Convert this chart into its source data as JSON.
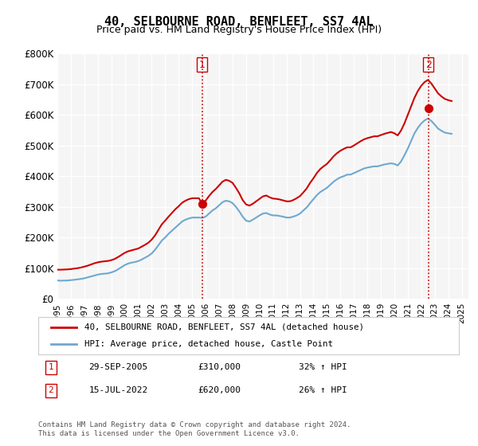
{
  "title": "40, SELBOURNE ROAD, BENFLEET, SS7 4AL",
  "subtitle": "Price paid vs. HM Land Registry's House Price Index (HPI)",
  "ylabel": "",
  "ylim": [
    0,
    800000
  ],
  "yticks": [
    0,
    100000,
    200000,
    300000,
    400000,
    500000,
    600000,
    700000,
    800000
  ],
  "ytick_labels": [
    "£0",
    "£100K",
    "£200K",
    "£300K",
    "£400K",
    "£500K",
    "£600K",
    "£700K",
    "£800K"
  ],
  "background_color": "#ffffff",
  "plot_background": "#f5f5f5",
  "grid_color": "#ffffff",
  "sale1_date": 2005.75,
  "sale1_price": 310000,
  "sale1_label": "1",
  "sale2_date": 2022.54,
  "sale2_price": 620000,
  "sale2_label": "2",
  "hpi_line_color": "#6fa8d0",
  "price_line_color": "#cc0000",
  "vline_color": "#cc0000",
  "vline_style": ":",
  "legend_label1": "40, SELBOURNE ROAD, BENFLEET, SS7 4AL (detached house)",
  "legend_label2": "HPI: Average price, detached house, Castle Point",
  "annotation1": "1     29-SEP-2005          £310,000          32% ↑ HPI",
  "annotation2": "2     15-JUL-2022            £620,000          26% ↑ HPI",
  "footer": "Contains HM Land Registry data © Crown copyright and database right 2024.\nThis data is licensed under the Open Government Licence v3.0.",
  "hpi_data": {
    "years": [
      1995.0,
      1995.25,
      1995.5,
      1995.75,
      1996.0,
      1996.25,
      1996.5,
      1996.75,
      1997.0,
      1997.25,
      1997.5,
      1997.75,
      1998.0,
      1998.25,
      1998.5,
      1998.75,
      1999.0,
      1999.25,
      1999.5,
      1999.75,
      2000.0,
      2000.25,
      2000.5,
      2000.75,
      2001.0,
      2001.25,
      2001.5,
      2001.75,
      2002.0,
      2002.25,
      2002.5,
      2002.75,
      2003.0,
      2003.25,
      2003.5,
      2003.75,
      2004.0,
      2004.25,
      2004.5,
      2004.75,
      2005.0,
      2005.25,
      2005.5,
      2005.75,
      2006.0,
      2006.25,
      2006.5,
      2006.75,
      2007.0,
      2007.25,
      2007.5,
      2007.75,
      2008.0,
      2008.25,
      2008.5,
      2008.75,
      2009.0,
      2009.25,
      2009.5,
      2009.75,
      2010.0,
      2010.25,
      2010.5,
      2010.75,
      2011.0,
      2011.25,
      2011.5,
      2011.75,
      2012.0,
      2012.25,
      2012.5,
      2012.75,
      2013.0,
      2013.25,
      2013.5,
      2013.75,
      2014.0,
      2014.25,
      2014.5,
      2014.75,
      2015.0,
      2015.25,
      2015.5,
      2015.75,
      2016.0,
      2016.25,
      2016.5,
      2016.75,
      2017.0,
      2017.25,
      2017.5,
      2017.75,
      2018.0,
      2018.25,
      2018.5,
      2018.75,
      2019.0,
      2019.25,
      2019.5,
      2019.75,
      2020.0,
      2020.25,
      2020.5,
      2020.75,
      2021.0,
      2021.25,
      2021.5,
      2021.75,
      2022.0,
      2022.25,
      2022.5,
      2022.75,
      2023.0,
      2023.25,
      2023.5,
      2023.75,
      2024.0,
      2024.25
    ],
    "values": [
      60000,
      59000,
      59500,
      60000,
      61000,
      62000,
      63500,
      65000,
      67000,
      70000,
      73000,
      76000,
      79000,
      81000,
      82000,
      83000,
      86000,
      90000,
      96000,
      103000,
      110000,
      115000,
      118000,
      120000,
      123000,
      128000,
      134000,
      140000,
      148000,
      160000,
      175000,
      190000,
      200000,
      212000,
      222000,
      232000,
      242000,
      252000,
      258000,
      262000,
      265000,
      265000,
      265000,
      264000,
      268000,
      278000,
      288000,
      295000,
      305000,
      315000,
      320000,
      318000,
      312000,
      300000,
      285000,
      268000,
      255000,
      252000,
      258000,
      265000,
      272000,
      278000,
      280000,
      275000,
      272000,
      272000,
      270000,
      268000,
      265000,
      265000,
      268000,
      272000,
      278000,
      288000,
      298000,
      312000,
      325000,
      338000,
      348000,
      355000,
      362000,
      372000,
      382000,
      390000,
      396000,
      400000,
      405000,
      405000,
      410000,
      415000,
      420000,
      425000,
      428000,
      430000,
      432000,
      432000,
      435000,
      438000,
      440000,
      442000,
      440000,
      435000,
      448000,
      468000,
      490000,
      515000,
      540000,
      558000,
      572000,
      582000,
      588000,
      580000,
      568000,
      555000,
      548000,
      542000,
      540000,
      538000
    ]
  },
  "price_data": {
    "years": [
      1995.0,
      1995.25,
      1995.5,
      1995.75,
      1996.0,
      1996.25,
      1996.5,
      1996.75,
      1997.0,
      1997.25,
      1997.5,
      1997.75,
      1998.0,
      1998.25,
      1998.5,
      1998.75,
      1999.0,
      1999.25,
      1999.5,
      1999.75,
      2000.0,
      2000.25,
      2000.5,
      2000.75,
      2001.0,
      2001.25,
      2001.5,
      2001.75,
      2002.0,
      2002.25,
      2002.5,
      2002.75,
      2003.0,
      2003.25,
      2003.5,
      2003.75,
      2004.0,
      2004.25,
      2004.5,
      2004.75,
      2005.0,
      2005.25,
      2005.5,
      2005.75,
      2006.0,
      2006.25,
      2006.5,
      2006.75,
      2007.0,
      2007.25,
      2007.5,
      2007.75,
      2008.0,
      2008.25,
      2008.5,
      2008.75,
      2009.0,
      2009.25,
      2009.5,
      2009.75,
      2010.0,
      2010.25,
      2010.5,
      2010.75,
      2011.0,
      2011.25,
      2011.5,
      2011.75,
      2012.0,
      2012.25,
      2012.5,
      2012.75,
      2013.0,
      2013.25,
      2013.5,
      2013.75,
      2014.0,
      2014.25,
      2014.5,
      2014.75,
      2015.0,
      2015.25,
      2015.5,
      2015.75,
      2016.0,
      2016.25,
      2016.5,
      2016.75,
      2017.0,
      2017.25,
      2017.5,
      2017.75,
      2018.0,
      2018.25,
      2018.5,
      2018.75,
      2019.0,
      2019.25,
      2019.5,
      2019.75,
      2020.0,
      2020.25,
      2020.5,
      2020.75,
      2021.0,
      2021.25,
      2021.5,
      2021.75,
      2022.0,
      2022.25,
      2022.5,
      2022.75,
      2023.0,
      2023.25,
      2023.5,
      2023.75,
      2024.0,
      2024.25
    ],
    "values": [
      95000,
      95000,
      95500,
      96000,
      97000,
      98500,
      100000,
      102000,
      105000,
      108000,
      112000,
      116000,
      119000,
      121000,
      122500,
      123500,
      126000,
      130000,
      136000,
      143000,
      150000,
      155000,
      158000,
      161000,
      164000,
      170000,
      176000,
      183000,
      193000,
      207000,
      225000,
      243000,
      255000,
      268000,
      280000,
      292000,
      302000,
      313000,
      320000,
      325000,
      328000,
      328000,
      328000,
      310000,
      320000,
      335000,
      348000,
      358000,
      370000,
      382000,
      388000,
      385000,
      378000,
      362000,
      344000,
      322000,
      308000,
      304000,
      310000,
      318000,
      326000,
      334000,
      337000,
      331000,
      327000,
      326000,
      324000,
      321000,
      318000,
      318000,
      322000,
      328000,
      335000,
      347000,
      360000,
      378000,
      393000,
      410000,
      423000,
      432000,
      440000,
      452000,
      465000,
      475000,
      483000,
      489000,
      494000,
      494000,
      500000,
      507000,
      514000,
      520000,
      524000,
      527000,
      530000,
      530000,
      534000,
      538000,
      541000,
      544000,
      540000,
      533000,
      549000,
      572000,
      600000,
      628000,
      656000,
      678000,
      695000,
      707000,
      714000,
      702000,
      686000,
      670000,
      660000,
      652000,
      648000,
      645000
    ]
  }
}
